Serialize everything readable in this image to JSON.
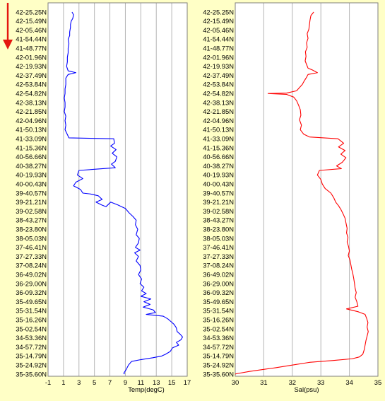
{
  "colors": {
    "background": "#ffffc6",
    "plot_bg": "#ffffff",
    "grid": "#b4b4b4",
    "temp_line": "#0000ff",
    "sal_line": "#ff0000",
    "arrow": "#e4160f"
  },
  "icons": {
    "direction": "red-down-arrow-icon"
  },
  "chart_data": [
    {
      "type": "line",
      "orientation": "vertical-profile",
      "xlabel": "Temp(degC)",
      "xlim": [
        -1,
        17
      ],
      "xticks": [
        -1,
        1,
        3,
        5,
        7,
        9,
        11,
        13,
        15,
        17
      ],
      "grid": true,
      "y_categories": [
        "42-25.25N",
        "42-15.49N",
        "42-05.46N",
        "41-54.44N",
        "41-48.77N",
        "42-01.96N",
        "42-19.93N",
        "42-37.49N",
        "42-53.84N",
        "42-54.82N",
        "42-38.13N",
        "42-21.85N",
        "42-04.96N",
        "41-50.13N",
        "41-33.09N",
        "41-15.36N",
        "40-56.66N",
        "40-38.27N",
        "40-19.93N",
        "40-00.43N",
        "39-40.57N",
        "39-21.21N",
        "39-02.58N",
        "38-43.27N",
        "38-23.80N",
        "38-05.03N",
        "37-46.41N",
        "37-27.33N",
        "37-08.24N",
        "36-49.02N",
        "36-29.00N",
        "36-09.32N",
        "35-49.65N",
        "35-31.54N",
        "35-16.26N",
        "35-02.54N",
        "34-53.36N",
        "34-57.72N",
        "35-14.79N",
        "35-24.92N",
        "35-35.60N"
      ],
      "series": [
        {
          "values": [
            [
              2.1,
              0
            ],
            [
              2.3,
              0.3
            ],
            [
              2.2,
              0.7
            ],
            [
              2.0,
              1.0
            ],
            [
              1.9,
              1.4
            ],
            [
              1.9,
              1.7
            ],
            [
              1.8,
              2.2
            ],
            [
              1.8,
              2.6
            ],
            [
              1.6,
              3.0
            ],
            [
              1.7,
              3.5
            ],
            [
              1.6,
              4.0
            ],
            [
              1.6,
              4.5
            ],
            [
              1.5,
              5.0
            ],
            [
              1.5,
              5.5
            ],
            [
              1.4,
              6.0
            ],
            [
              1.6,
              6.5
            ],
            [
              2.6,
              6.7
            ],
            [
              1.6,
              6.9
            ],
            [
              1.3,
              7.3
            ],
            [
              1.3,
              8.0
            ],
            [
              1.2,
              8.5
            ],
            [
              1.2,
              9.0
            ],
            [
              1.1,
              9.5
            ],
            [
              1.2,
              10.0
            ],
            [
              1.2,
              10.5
            ],
            [
              1.1,
              11.0
            ],
            [
              1.3,
              11.5
            ],
            [
              1.2,
              12.0
            ],
            [
              1.3,
              12.5
            ],
            [
              1.2,
              13.0
            ],
            [
              1.7,
              13.9
            ],
            [
              7.5,
              14.0
            ],
            [
              7.6,
              14.5
            ],
            [
              7.1,
              14.8
            ],
            [
              7.8,
              15.2
            ],
            [
              7.3,
              15.6
            ],
            [
              7.9,
              16.0
            ],
            [
              7.7,
              16.5
            ],
            [
              7.2,
              16.8
            ],
            [
              7.7,
              17.2
            ],
            [
              3.0,
              17.5
            ],
            [
              2.8,
              18.0
            ],
            [
              3.5,
              18.4
            ],
            [
              2.6,
              18.8
            ],
            [
              2.3,
              19.2
            ],
            [
              3.2,
              19.6
            ],
            [
              3.5,
              20.0
            ],
            [
              4.5,
              20.1
            ],
            [
              5.5,
              20.3
            ],
            [
              6.0,
              20.7
            ],
            [
              5.2,
              21.0
            ],
            [
              5.9,
              21.3
            ],
            [
              6.5,
              21.5
            ],
            [
              7.1,
              21.0
            ],
            [
              8.0,
              21.3
            ],
            [
              9.0,
              21.7
            ],
            [
              9.5,
              22.2
            ],
            [
              10.0,
              22.6
            ],
            [
              10.4,
              23.0
            ],
            [
              10.3,
              23.5
            ],
            [
              10.6,
              24.0
            ],
            [
              10.4,
              24.6
            ],
            [
              10.8,
              25.0
            ],
            [
              10.7,
              25.5
            ],
            [
              10.3,
              26.0
            ],
            [
              10.9,
              26.3
            ],
            [
              10.2,
              26.6
            ],
            [
              10.7,
              27.0
            ],
            [
              10.4,
              27.5
            ],
            [
              10.9,
              28.0
            ],
            [
              11.0,
              28.5
            ],
            [
              10.7,
              29.0
            ],
            [
              11.1,
              29.5
            ],
            [
              10.9,
              30.0
            ],
            [
              11.4,
              30.4
            ],
            [
              11.1,
              30.8
            ],
            [
              11.7,
              31.1
            ],
            [
              11.0,
              31.4
            ],
            [
              12.3,
              31.7
            ],
            [
              11.4,
              32.0
            ],
            [
              12.2,
              32.3
            ],
            [
              11.3,
              32.6
            ],
            [
              12.6,
              32.9
            ],
            [
              12.9,
              33.2
            ],
            [
              11.7,
              33.4
            ],
            [
              13.9,
              33.6
            ],
            [
              14.5,
              33.9
            ],
            [
              14.9,
              34.2
            ],
            [
              15.3,
              34.5
            ],
            [
              15.6,
              34.9
            ],
            [
              15.7,
              35.3
            ],
            [
              16.1,
              35.6
            ],
            [
              16.4,
              35.9
            ],
            [
              16.2,
              36.2
            ],
            [
              15.6,
              36.5
            ],
            [
              15.9,
              36.8
            ],
            [
              15.1,
              37.1
            ],
            [
              14.8,
              37.5
            ],
            [
              14.2,
              37.8
            ],
            [
              13.7,
              38.0
            ],
            [
              12.5,
              38.2
            ],
            [
              11.0,
              38.4
            ],
            [
              9.8,
              38.6
            ],
            [
              9.4,
              39.0
            ],
            [
              9.1,
              39.5
            ],
            [
              8.8,
              39.9
            ],
            [
              8.9,
              40.0
            ]
          ]
        }
      ]
    },
    {
      "type": "line",
      "orientation": "vertical-profile",
      "xlabel": "Sal(psu)",
      "xlim": [
        30,
        35
      ],
      "xticks": [
        30,
        31,
        32,
        33,
        34,
        35
      ],
      "grid": true,
      "y_categories": [
        "42-25.25N",
        "42-15.49N",
        "42-05.46N",
        "41-54.44N",
        "41-48.77N",
        "42-01.96N",
        "42-19.93N",
        "42-37.49N",
        "42-53.84N",
        "42-54.82N",
        "42-38.13N",
        "42-21.85N",
        "42-04.96N",
        "41-50.13N",
        "41-33.09N",
        "41-15.36N",
        "40-56.66N",
        "40-38.27N",
        "40-19.93N",
        "40-00.43N",
        "39-40.57N",
        "39-21.21N",
        "39-02.58N",
        "38-43.27N",
        "38-23.80N",
        "38-05.03N",
        "37-46.41N",
        "37-27.33N",
        "37-08.24N",
        "36-49.02N",
        "36-29.00N",
        "36-09.32N",
        "35-49.65N",
        "35-31.54N",
        "35-16.26N",
        "35-02.54N",
        "34-53.36N",
        "34-57.72N",
        "35-14.79N",
        "35-24.92N",
        "35-35.60N"
      ],
      "series": [
        {
          "values": [
            [
              32.75,
              0
            ],
            [
              32.65,
              0.4
            ],
            [
              32.62,
              0.9
            ],
            [
              32.6,
              1.4
            ],
            [
              32.58,
              1.9
            ],
            [
              32.52,
              2.4
            ],
            [
              32.55,
              2.9
            ],
            [
              32.5,
              3.4
            ],
            [
              32.52,
              3.9
            ],
            [
              32.46,
              4.4
            ],
            [
              32.48,
              4.9
            ],
            [
              32.45,
              5.4
            ],
            [
              32.5,
              5.8
            ],
            [
              32.55,
              6.2
            ],
            [
              32.7,
              6.4
            ],
            [
              32.88,
              6.7
            ],
            [
              32.55,
              6.9
            ],
            [
              32.5,
              7.2
            ],
            [
              32.42,
              7.6
            ],
            [
              32.35,
              8.0
            ],
            [
              32.15,
              8.7
            ],
            [
              31.8,
              8.95
            ],
            [
              31.15,
              9.0
            ],
            [
              31.8,
              9.1
            ],
            [
              32.05,
              9.4
            ],
            [
              32.15,
              9.8
            ],
            [
              32.22,
              10.3
            ],
            [
              32.28,
              10.8
            ],
            [
              32.3,
              11.4
            ],
            [
              32.25,
              11.9
            ],
            [
              32.32,
              12.5
            ],
            [
              32.28,
              13.0
            ],
            [
              32.4,
              13.5
            ],
            [
              32.6,
              13.8
            ],
            [
              33.6,
              14.0
            ],
            [
              33.8,
              14.5
            ],
            [
              33.62,
              14.9
            ],
            [
              33.85,
              15.3
            ],
            [
              33.7,
              15.7
            ],
            [
              33.88,
              16.1
            ],
            [
              33.75,
              16.6
            ],
            [
              33.55,
              17.0
            ],
            [
              33.72,
              17.3
            ],
            [
              32.95,
              17.5
            ],
            [
              32.88,
              18.0
            ],
            [
              33.0,
              18.5
            ],
            [
              33.05,
              19.0
            ],
            [
              33.15,
              19.5
            ],
            [
              33.35,
              20.0
            ],
            [
              33.45,
              20.5
            ],
            [
              33.52,
              21.0
            ],
            [
              33.62,
              21.4
            ],
            [
              33.7,
              21.8
            ],
            [
              33.78,
              22.3
            ],
            [
              33.85,
              22.8
            ],
            [
              33.88,
              23.3
            ],
            [
              33.92,
              23.9
            ],
            [
              33.9,
              24.4
            ],
            [
              33.95,
              24.9
            ],
            [
              33.92,
              25.4
            ],
            [
              33.97,
              25.9
            ],
            [
              34.0,
              26.4
            ],
            [
              33.96,
              26.9
            ],
            [
              34.02,
              27.4
            ],
            [
              34.05,
              27.9
            ],
            [
              34.08,
              28.4
            ],
            [
              34.12,
              28.9
            ],
            [
              34.15,
              29.4
            ],
            [
              34.18,
              30.0
            ],
            [
              34.2,
              30.5
            ],
            [
              34.24,
              31.0
            ],
            [
              34.2,
              31.5
            ],
            [
              34.26,
              32.0
            ],
            [
              34.3,
              32.5
            ],
            [
              33.9,
              32.8
            ],
            [
              34.3,
              33.1
            ],
            [
              34.55,
              33.4
            ],
            [
              34.6,
              33.8
            ],
            [
              34.65,
              34.3
            ],
            [
              34.62,
              34.8
            ],
            [
              34.66,
              35.3
            ],
            [
              34.62,
              35.8
            ],
            [
              34.58,
              36.3
            ],
            [
              34.55,
              36.8
            ],
            [
              34.52,
              37.3
            ],
            [
              34.47,
              37.8
            ],
            [
              34.35,
              38.1
            ],
            [
              34.1,
              38.3
            ],
            [
              33.4,
              38.5
            ],
            [
              32.6,
              38.7
            ],
            [
              32.0,
              39.0
            ],
            [
              31.4,
              39.3
            ],
            [
              30.5,
              39.7
            ],
            [
              30.05,
              39.95
            ],
            [
              30.0,
              40.0
            ]
          ]
        }
      ]
    }
  ]
}
